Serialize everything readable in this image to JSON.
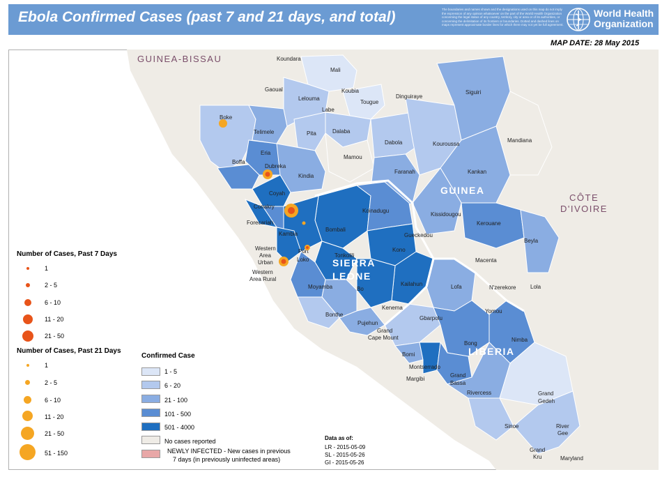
{
  "header": {
    "title": "Ebola Confirmed Cases (past 7 and 21 days, and total)",
    "disclaimer": "The boundaries and names shown and the designations used on this map do not imply the expression of any opinion whatsoever on the part of the World Health Organization concerning the legal status of any country, territory, city or area or of its authorities, or concerning the delimitation of its frontiers or boundaries. Dotted and dashed lines on maps represent approximate border lines for which there may not yet be full agreement.",
    "org_line1": "World Health",
    "org_line2": "Organization",
    "map_date": "MAP DATE: 28 May 2015"
  },
  "countries": {
    "guinea_bissau": "GUINEA-BISSAU",
    "guinea": "GUINEA",
    "cote_line1": "CÔTE",
    "cote_line2": "D'IVOIRE",
    "sierra_line1": "SIERRA",
    "sierra_line2": "LEONE",
    "liberia": "LIBERIA"
  },
  "districts": {
    "koundara": "Koundara",
    "mali": "Mali",
    "gaoual": "Gaoual",
    "koubia": "Koubia",
    "lelouma": "Lelouma",
    "tougue": "Tougue",
    "dinguiraye": "Dinguiraye",
    "siguiri": "Siguiri",
    "labe": "Labe",
    "boke": "Boke",
    "telimele": "Telimele",
    "pita": "Pita",
    "dalaba": "Dalaba",
    "mamou": "Mamou",
    "dabola": "Dabola",
    "kouroussa": "Kouroussa",
    "mandiana": "Mandiana",
    "eria": "Eria",
    "boffa": "Boffa",
    "dubreka": "Dubreka",
    "kindia": "Kindia",
    "faranah": "Faranah",
    "kankan": "Kankan",
    "coyah": "Coyah",
    "conakry": "Conakry",
    "forecariah": "Forecariah",
    "koinadugu": "Koinadugu",
    "kissidougou": "Kissidougou",
    "bombali": "Bombali",
    "kerouane": "Kerouane",
    "kambia": "Kambia",
    "gueckedou": "Gueckedou",
    "beyla": "Beyla",
    "western_area_urban_1": "Western",
    "western_area_urban_2": "Area",
    "western_area_urban_3": "Urban",
    "port_loko_1": "Port",
    "port_loko_2": "Loko",
    "tonkolili": "Tonkolili",
    "kono": "Kono",
    "macenta": "Macenta",
    "western_area_rural_1": "Western",
    "western_area_rural_2": "Area Rural",
    "kailahun": "Kailahun",
    "moyamba": "Moyamba",
    "bo": "Bo",
    "lofa": "Lofa",
    "nzerekore": "N'zerekore",
    "lola": "Lola",
    "kenema": "Kenema",
    "bonthe": "Bonthe",
    "yomou": "Yomou",
    "gbarpolu": "Gbarpolu",
    "pujehun": "Pujehun",
    "grand_cape_mount_1": "Grand",
    "grand_cape_mount_2": "Cape Mount",
    "bong": "Bong",
    "nimba": "Nimba",
    "bomi": "Bomi",
    "montserrado": "Montserrado",
    "margibi": "Margibi",
    "grand_bassa_1": "Grand",
    "grand_bassa_2": "Bassa",
    "rivercess": "Rivercess",
    "grand_gedeh_1": "Grand",
    "grand_gedeh_2": "Gedeh",
    "sinoe": "Sinoe",
    "river_gee_1": "River",
    "river_gee_2": "Gee",
    "grand_kru_1": "Grand",
    "grand_kru_2": "Kru",
    "maryland": "Maryland"
  },
  "legend_7day": {
    "title": "Number of Cases, Past 7 Days",
    "items": [
      "1",
      "2 - 5",
      "6 - 10",
      "11 - 20",
      "21 - 50"
    ],
    "color": "#e8541a"
  },
  "legend_21day": {
    "title": "Number of Cases, Past 21 Days",
    "items": [
      "1",
      "2 - 5",
      "6 - 10",
      "11 - 20",
      "21 - 50",
      "51 - 150"
    ],
    "color": "#f5a623"
  },
  "legend_confirmed": {
    "title": "Confirmed Case",
    "items": [
      {
        "label": "1 - 5",
        "color": "#dce6f7"
      },
      {
        "label": "6 - 20",
        "color": "#b3c9ee"
      },
      {
        "label": "21 - 100",
        "color": "#8aade2"
      },
      {
        "label": "101 - 500",
        "color": "#5a8dd3"
      },
      {
        "label": "501 - 4000",
        "color": "#1f6fc0"
      },
      {
        "label": "No cases reported",
        "color": "#efece6"
      },
      {
        "label_line1": "NEWLY INFECTED - New cases in previous",
        "label_line2": "7 days (in previously uninfected areas)",
        "color": "#e8a7a7"
      }
    ]
  },
  "data_as_of": {
    "title": "Data as of:",
    "lines": [
      "LR - 2015-05-09",
      "SL - 2015-05-26",
      "GI - 2015-05-26"
    ]
  },
  "colors": {
    "header_bg": "#6b9bd3",
    "ocean": "#ffffff",
    "land": "#efece6",
    "border": "#ffffff"
  }
}
